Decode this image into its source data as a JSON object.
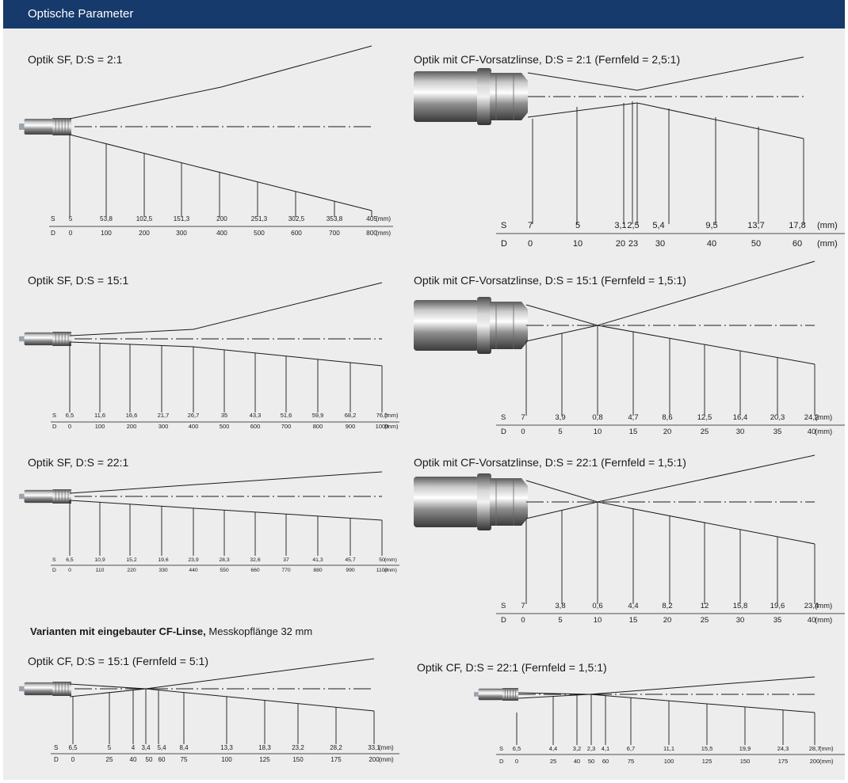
{
  "header": {
    "title": "Optische Parameter"
  },
  "section_note": {
    "bold": "Varianten mit eingebauter CF-Linse,",
    "normal": " Messkopflänge 32 mm"
  },
  "colors": {
    "header_bg": "#163a6b",
    "panel_bg": "#ededed",
    "line": "#1a1a1a"
  },
  "diagrams": [
    {
      "id": "sf-2-1",
      "title": "Optik SF, D:S = 2:1",
      "sensor": "small",
      "s_label": "S",
      "d_label": "D",
      "s_values": [
        "5",
        "53,8",
        "102,5",
        "151,3",
        "200",
        "251,3",
        "302,5",
        "353,8",
        "405"
      ],
      "d_values": [
        "0",
        "100",
        "200",
        "300",
        "400",
        "500",
        "600",
        "700",
        "800"
      ],
      "unit": "(mm)"
    },
    {
      "id": "cf-2-1",
      "title": "Optik mit CF-Vorsatzlinse, D:S = 2:1 (Fernfeld = 2,5:1)",
      "sensor": "large",
      "s_label": "S",
      "d_label": "D",
      "s_values": [
        "7",
        "5",
        "3,1",
        "2,5",
        "5,4",
        "9,5",
        "13,7",
        "17,8"
      ],
      "d_values": [
        "0",
        "10",
        "20",
        "23",
        "30",
        "40",
        "50",
        "60"
      ],
      "unit": "(mm)"
    },
    {
      "id": "sf-15-1",
      "title": "Optik SF, D:S = 15:1",
      "sensor": "small",
      "s_label": "S",
      "d_label": "D",
      "s_values": [
        "6,5",
        "11,6",
        "16,6",
        "21,7",
        "26,7",
        "35",
        "43,3",
        "51,6",
        "59,9",
        "68,2",
        "76,5"
      ],
      "d_values": [
        "0",
        "100",
        "200",
        "300",
        "400",
        "500",
        "600",
        "700",
        "800",
        "900",
        "1000"
      ],
      "unit": "(mm)"
    },
    {
      "id": "cf-15-1",
      "title": "Optik mit CF-Vorsatzlinse, D:S = 15:1 (Fernfeld = 1,5:1)",
      "sensor": "large",
      "s_label": "S",
      "d_label": "D",
      "s_values": [
        "7",
        "3,9",
        "0,8",
        "4,7",
        "8,6",
        "12,5",
        "16,4",
        "20,3",
        "24,2"
      ],
      "d_values": [
        "0",
        "5",
        "10",
        "15",
        "20",
        "25",
        "30",
        "35",
        "40"
      ],
      "unit": "(mm)"
    },
    {
      "id": "sf-22-1",
      "title": "Optik SF, D:S = 22:1",
      "sensor": "small",
      "s_label": "S",
      "d_label": "D",
      "s_values": [
        "6,5",
        "10,9",
        "15,2",
        "19,6",
        "23,9",
        "28,3",
        "32,6",
        "37",
        "41,3",
        "45,7",
        "50"
      ],
      "d_values": [
        "0",
        "110",
        "220",
        "330",
        "440",
        "550",
        "660",
        "770",
        "880",
        "990",
        "1100"
      ],
      "unit": "(mm)"
    },
    {
      "id": "cf-22-1",
      "title": "Optik mit CF-Vorsatzlinse, D:S = 22:1 (Fernfeld = 1,5:1)",
      "sensor": "large",
      "s_label": "S",
      "d_label": "D",
      "s_values": [
        "7",
        "3,8",
        "0,6",
        "4,4",
        "8,2",
        "12",
        "15,8",
        "19,6",
        "23,4"
      ],
      "d_values": [
        "0",
        "5",
        "10",
        "15",
        "20",
        "25",
        "30",
        "35",
        "40"
      ],
      "unit": "(mm)"
    },
    {
      "id": "ocf-15-1",
      "title": "Optik CF, D:S = 15:1 (Fernfeld = 5:1)",
      "sensor": "small",
      "s_label": "S",
      "d_label": "D",
      "s_values": [
        "6,5",
        "5",
        "4",
        "3,4",
        "5,4",
        "8,4",
        "13,3",
        "18,3",
        "23,2",
        "28,2",
        "33,1"
      ],
      "d_values": [
        "0",
        "25",
        "40",
        "50",
        "60",
        "75",
        "100",
        "125",
        "150",
        "175",
        "200"
      ],
      "unit": "(mm)"
    },
    {
      "id": "ocf-22-1",
      "title": "Optik CF, D:S = 22:1 (Fernfeld = 1,5:1)",
      "sensor": "small",
      "s_label": "S",
      "d_label": "D",
      "s_values": [
        "6,5",
        "4,4",
        "3,2",
        "2,3",
        "4,1",
        "6,7",
        "11,1",
        "15,5",
        "19,9",
        "24,3",
        "28,7"
      ],
      "d_values": [
        "0",
        "25",
        "40",
        "50",
        "60",
        "75",
        "100",
        "125",
        "150",
        "175",
        "200"
      ],
      "unit": "(mm)"
    }
  ]
}
